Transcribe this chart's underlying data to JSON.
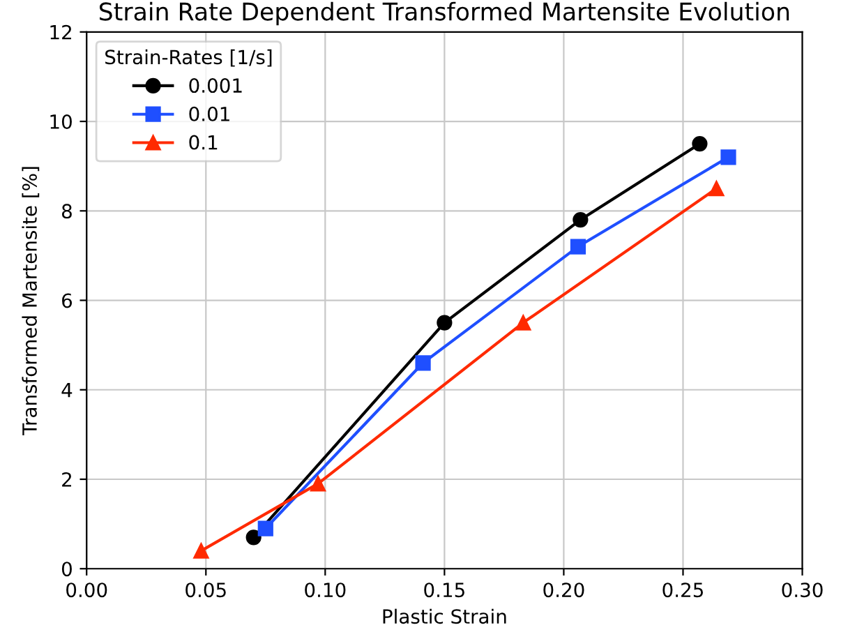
{
  "chart_data": {
    "type": "line",
    "title": "Strain Rate Dependent Transformed Martensite Evolution",
    "xlabel": "Plastic Strain",
    "ylabel": "Transformed Martensite [%]",
    "legend_title": "Strain-Rates [1/s]",
    "series": [
      {
        "name": "0.001",
        "color": "#000000",
        "marker": "circle",
        "x": [
          0.07,
          0.15,
          0.207,
          0.257
        ],
        "values": [
          0.7,
          5.5,
          7.8,
          9.5
        ]
      },
      {
        "name": "0.01",
        "color": "#1f4fff",
        "marker": "square",
        "x": [
          0.075,
          0.141,
          0.206,
          0.269
        ],
        "values": [
          0.9,
          4.6,
          7.2,
          9.2
        ]
      },
      {
        "name": "0.1",
        "color": "#ff2a00",
        "marker": "triangle",
        "x": [
          0.048,
          0.097,
          0.183,
          0.264
        ],
        "values": [
          0.4,
          1.9,
          5.5,
          8.5
        ]
      }
    ],
    "xlim": [
      0.0,
      0.3
    ],
    "xticks": [
      {
        "value": 0,
        "label": "0.00"
      },
      {
        "value": 0.05,
        "label": "0.05"
      },
      {
        "value": 0.1,
        "label": "0.10"
      },
      {
        "value": 0.15,
        "label": "0.15"
      },
      {
        "value": 0.2,
        "label": "0.20"
      },
      {
        "value": 0.25,
        "label": "0.25"
      },
      {
        "value": 0.3,
        "label": "0.30"
      }
    ],
    "ylim": [
      0,
      12
    ],
    "yticks": [
      0,
      2,
      4,
      6,
      8,
      10,
      12
    ],
    "grid": true,
    "legend": "top left",
    "line_style": "solid"
  }
}
